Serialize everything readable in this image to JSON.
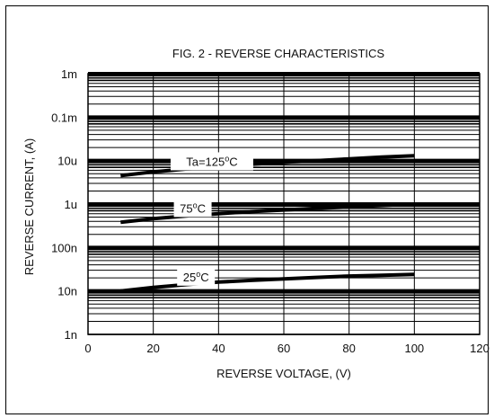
{
  "chart_data": {
    "type": "line",
    "title": "FIG. 2 - REVERSE CHARACTERISTICS",
    "xlabel": "REVERSE VOLTAGE, (V)",
    "ylabel": "REVERSE CURRENT, (A)",
    "x_ticks": [
      "0",
      "20",
      "40",
      "60",
      "80",
      "100",
      "120"
    ],
    "y_ticks": [
      "1n",
      "10n",
      "100n",
      "1u",
      "10u",
      "0.1m",
      "1m"
    ],
    "xlim": [
      0,
      120
    ],
    "ylim": [
      1e-09,
      0.001
    ],
    "yscale": "log",
    "grid": true,
    "series": [
      {
        "name": "Ta=125°C",
        "label_main": "Ta=125",
        "label_sup": "o",
        "label_unit": "C",
        "x": [
          10,
          20,
          30,
          40,
          50,
          60,
          70,
          80,
          90,
          100
        ],
        "y": [
          4.5e-06,
          5.5e-06,
          6.4e-06,
          7.3e-06,
          8.2e-06,
          9.2e-06,
          1e-05,
          1.1e-05,
          1.2e-05,
          1.3e-05
        ]
      },
      {
        "name": "75°C",
        "label_main": "75",
        "label_sup": "o",
        "label_unit": "C",
        "x": [
          10,
          20,
          30,
          40,
          50,
          60,
          70,
          80,
          90,
          100
        ],
        "y": [
          3.8e-07,
          4.6e-07,
          5.3e-07,
          6e-07,
          6.7e-07,
          7.3e-07,
          8e-07,
          8.6e-07,
          9.3e-07,
          1e-06
        ]
      },
      {
        "name": "25°C",
        "label_main": "25",
        "label_sup": "o",
        "label_unit": "C",
        "x": [
          10,
          20,
          30,
          40,
          50,
          60,
          70,
          80,
          90,
          100
        ],
        "y": [
          1e-08,
          1.2e-08,
          1.4e-08,
          1.6e-08,
          1.75e-08,
          1.9e-08,
          2.05e-08,
          2.2e-08,
          2.3e-08,
          2.4e-08
        ]
      }
    ]
  }
}
